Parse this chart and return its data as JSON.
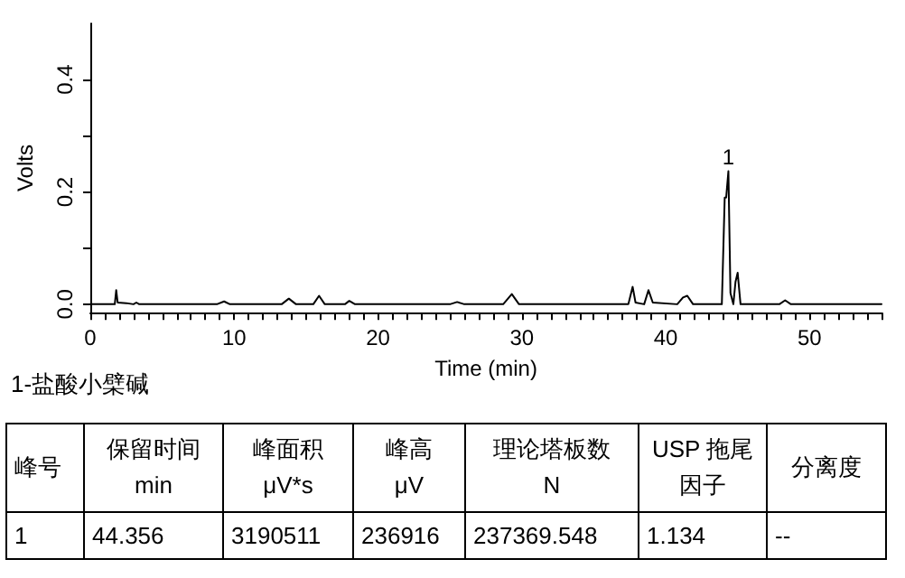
{
  "chart_data": {
    "type": "line",
    "xlabel": "Time (min)",
    "ylabel": "Volts",
    "x": [
      0,
      1.7,
      1.8,
      1.9,
      2.5,
      3.0,
      3.2,
      3.4,
      8.8,
      9.3,
      9.7,
      13.3,
      13.8,
      14.3,
      15.5,
      15.9,
      16.3,
      17.7,
      18,
      18.4,
      25,
      25.5,
      26,
      28.7,
      29.3,
      29.8,
      37.4,
      37.7,
      37.9,
      38.5,
      38.8,
      39.1,
      40.8,
      41.2,
      41.5,
      41.9,
      43.9,
      44.1,
      44.2,
      44.356,
      44.5,
      44.7,
      44.85,
      45.0,
      45.2,
      47.9,
      48.3,
      48.7,
      55
    ],
    "series": [
      {
        "color": "#000000",
        "values": [
          0,
          0,
          0.025,
          0.003,
          0.002,
          0,
          0.003,
          0,
          0,
          0.005,
          0,
          0,
          0.01,
          0,
          0,
          0.015,
          0,
          0,
          0.006,
          0,
          0,
          0.004,
          0,
          0,
          0.018,
          0,
          0,
          0.031,
          0.003,
          0,
          0.025,
          0.003,
          0,
          0.012,
          0.015,
          0,
          0,
          0.19,
          0.19,
          0.237,
          0.02,
          0,
          0.04,
          0.056,
          0,
          0,
          0.007,
          0,
          0
        ]
      }
    ],
    "xlim": [
      0,
      55
    ],
    "xticks": [
      0,
      {
        "value": 1,
        "label": null
      },
      {
        "value": 2,
        "label": null
      },
      {
        "value": 3,
        "label": null
      },
      {
        "value": 4,
        "label": null
      },
      {
        "value": 5,
        "label": null
      },
      {
        "value": 6,
        "label": null
      },
      {
        "value": 7,
        "label": null
      },
      {
        "value": 8,
        "label": null
      },
      {
        "value": 9,
        "label": null
      },
      10,
      {
        "value": 11,
        "label": null
      },
      {
        "value": 12,
        "label": null
      },
      {
        "value": 13,
        "label": null
      },
      {
        "value": 14,
        "label": null
      },
      {
        "value": 15,
        "label": null
      },
      {
        "value": 16,
        "label": null
      },
      {
        "value": 17,
        "label": null
      },
      {
        "value": 18,
        "label": null
      },
      {
        "value": 19,
        "label": null
      },
      20,
      {
        "value": 21,
        "label": null
      },
      {
        "value": 22,
        "label": null
      },
      {
        "value": 23,
        "label": null
      },
      {
        "value": 24,
        "label": null
      },
      {
        "value": 25,
        "label": null
      },
      {
        "value": 26,
        "label": null
      },
      {
        "value": 27,
        "label": null
      },
      {
        "value": 28,
        "label": null
      },
      {
        "value": 29,
        "label": null
      },
      30,
      {
        "value": 31,
        "label": null
      },
      {
        "value": 32,
        "label": null
      },
      {
        "value": 33,
        "label": null
      },
      {
        "value": 34,
        "label": null
      },
      {
        "value": 35,
        "label": null
      },
      {
        "value": 36,
        "label": null
      },
      {
        "value": 37,
        "label": null
      },
      {
        "value": 38,
        "label": null
      },
      {
        "value": 39,
        "label": null
      },
      40,
      {
        "value": 41,
        "label": null
      },
      {
        "value": 42,
        "label": null
      },
      {
        "value": 43,
        "label": null
      },
      {
        "value": 44,
        "label": null
      },
      {
        "value": 45,
        "label": null
      },
      {
        "value": 46,
        "label": null
      },
      {
        "value": 47,
        "label": null
      },
      {
        "value": 48,
        "label": null
      },
      {
        "value": 49,
        "label": null
      },
      50,
      {
        "value": 51,
        "label": null
      },
      {
        "value": 52,
        "label": null
      },
      {
        "value": 53,
        "label": null
      },
      {
        "value": 54,
        "label": null
      },
      {
        "value": 55,
        "label": null
      }
    ],
    "ylim": [
      -0.015,
      0.5
    ],
    "yticks": [
      {
        "value": 0,
        "label": "0.0"
      },
      {
        "value": 0.1,
        "label": null
      },
      {
        "value": 0.2,
        "label": "0.2"
      },
      {
        "value": 0.3,
        "label": null
      },
      {
        "value": 0.4,
        "label": "0.4"
      }
    ],
    "grid": false,
    "marker": "none",
    "line_style": "solid",
    "annotations": [
      {
        "text": "1",
        "x": 44.356,
        "y": 0.237
      },
      "1-盐酸小檗碱",
      "峰号",
      "保留时间\nmin",
      "峰面积\nμV*s",
      "峰高\nμV",
      "理论塔板数\nN",
      "USP 拖尾因子",
      "分离度",
      "1",
      "44.356",
      "3190511",
      "236916",
      "237369.548",
      "1.134",
      "--"
    ]
  }
}
